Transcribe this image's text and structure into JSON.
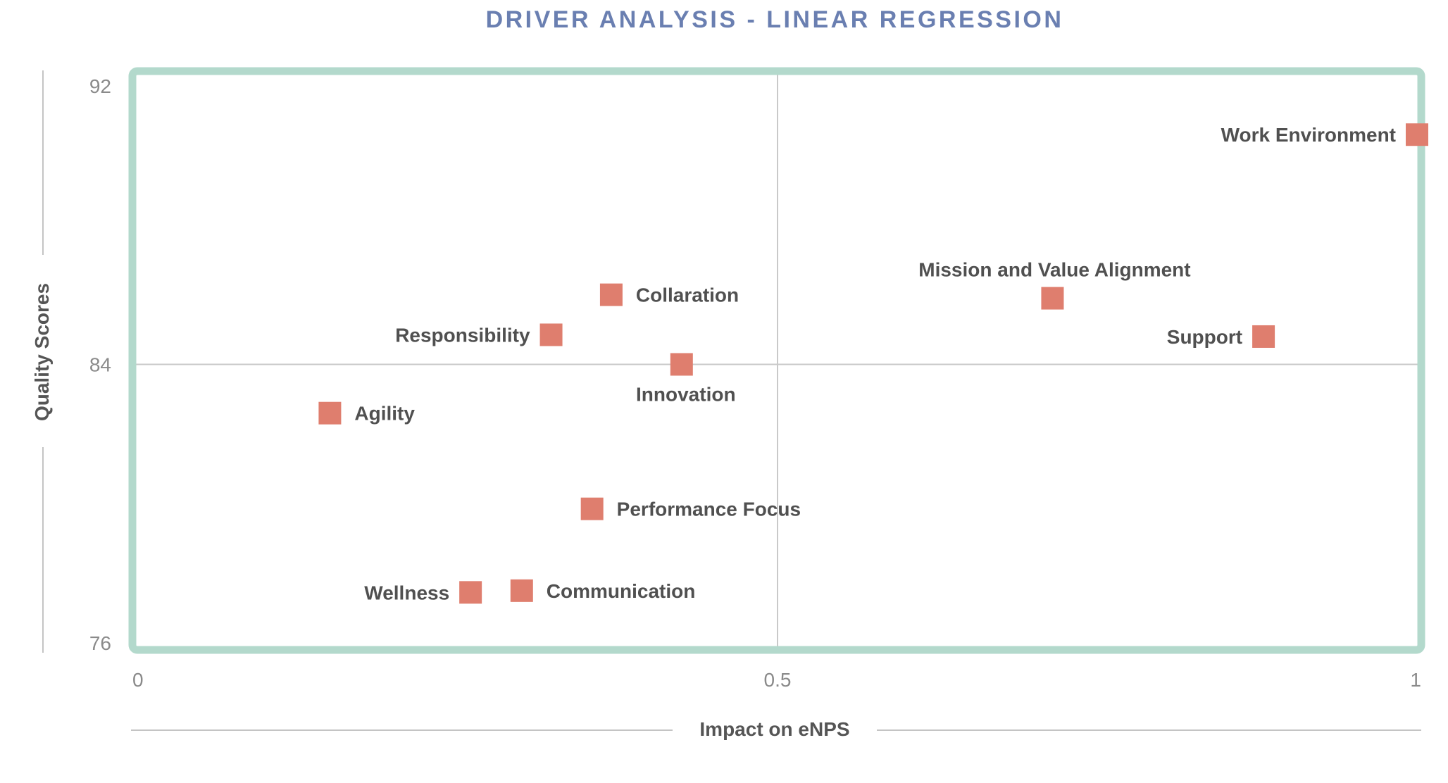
{
  "chart_data": {
    "type": "scatter",
    "title": "DRIVER ANALYSIS - LINEAR REGRESSION",
    "xlabel": "Impact on eNPS",
    "ylabel": "Quality Scores",
    "xlim": [
      0,
      1
    ],
    "ylim": [
      76,
      92
    ],
    "x_ticks": [
      0,
      0.5,
      1
    ],
    "x_tick_labels": [
      "0",
      "0.5",
      "1"
    ],
    "y_ticks": [
      76,
      84,
      92
    ],
    "y_tick_labels": [
      "76",
      "84",
      "92"
    ],
    "reference_lines": {
      "x": 0.5,
      "y": 84
    },
    "points": [
      {
        "label": "Work Environment",
        "x": 1.0,
        "y": 90.6,
        "label_side": "left"
      },
      {
        "label": "Mission and Value Alignment",
        "x": 0.715,
        "y": 85.9,
        "label_side": "above"
      },
      {
        "label": "Support",
        "x": 0.88,
        "y": 84.8,
        "label_side": "left"
      },
      {
        "label": "Collaration",
        "x": 0.37,
        "y": 86.0,
        "label_side": "right"
      },
      {
        "label": "Responsibility",
        "x": 0.323,
        "y": 84.85,
        "label_side": "left"
      },
      {
        "label": "Innovation",
        "x": 0.425,
        "y": 84.0,
        "label_side": "below"
      },
      {
        "label": "Agility",
        "x": 0.15,
        "y": 82.6,
        "label_side": "right"
      },
      {
        "label": "Performance Focus",
        "x": 0.355,
        "y": 79.85,
        "label_side": "right"
      },
      {
        "label": "Wellness",
        "x": 0.26,
        "y": 77.45,
        "label_side": "left"
      },
      {
        "label": "Communication",
        "x": 0.3,
        "y": 77.5,
        "label_side": "right"
      }
    ]
  },
  "colors": {
    "title": "#6a7fb1",
    "plot_border": "#b3d9cc",
    "marker": "#df7e6e",
    "reference_line": "#c9c9c9",
    "axis_rule": "#c4c4c4"
  }
}
